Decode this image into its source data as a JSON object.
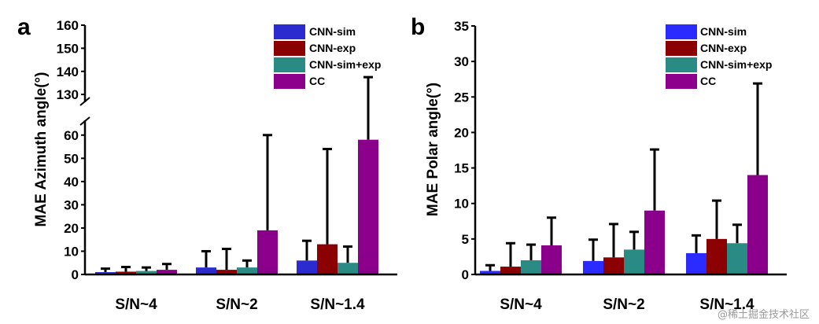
{
  "chart_data": [
    {
      "type": "bar",
      "panel_label": "a",
      "ylabel": "MAE Azimuth angle(°)",
      "categories": [
        "S/N~4",
        "S/N~2",
        "S/N~1.4"
      ],
      "series": [
        {
          "name": "CNN-sim",
          "color": "#2b2bd0",
          "values": [
            1.0,
            3.0,
            6.0
          ],
          "errors": [
            1.5,
            7.0,
            8.5
          ]
        },
        {
          "name": "CNN-exp",
          "color": "#8b0000",
          "values": [
            1.2,
            2.0,
            13.0
          ],
          "errors": [
            2.0,
            9.0,
            41.0
          ]
        },
        {
          "name": "CNN-sim+exp",
          "color": "#2a8a84",
          "values": [
            1.5,
            3.0,
            5.0
          ],
          "errors": [
            1.5,
            3.0,
            7.0
          ]
        },
        {
          "name": "CC",
          "color": "#8b008b",
          "values": [
            2.0,
            19.0,
            58.0
          ],
          "errors": [
            2.5,
            41.0,
            79.5
          ]
        }
      ],
      "axis_break": {
        "lower": [
          0,
          65
        ],
        "upper": [
          128,
          160
        ]
      },
      "ytick_labels": [
        "0",
        "10",
        "20",
        "30",
        "40",
        "50",
        "60",
        "130",
        "140",
        "150",
        "160"
      ]
    },
    {
      "type": "bar",
      "panel_label": "b",
      "ylabel": "MAE Polar angle(°)",
      "categories": [
        "S/N~4",
        "S/N~2",
        "S/N~1.4"
      ],
      "series": [
        {
          "name": "CNN-sim",
          "color": "#2b2bff",
          "values": [
            0.5,
            1.9,
            3.0
          ],
          "errors": [
            0.8,
            3.0,
            2.5
          ]
        },
        {
          "name": "CNN-exp",
          "color": "#8b0000",
          "values": [
            1.1,
            2.4,
            5.0
          ],
          "errors": [
            3.3,
            4.7,
            5.4
          ]
        },
        {
          "name": "CNN-sim+exp",
          "color": "#2a8a84",
          "values": [
            2.0,
            3.5,
            4.4
          ],
          "errors": [
            2.2,
            2.5,
            2.6
          ]
        },
        {
          "name": "CC",
          "color": "#8b008b",
          "values": [
            4.1,
            9.0,
            14.0
          ],
          "errors": [
            3.9,
            8.6,
            12.9
          ]
        }
      ],
      "ylim": [
        0,
        35
      ],
      "ytick_labels": [
        "0",
        "5",
        "10",
        "15",
        "20",
        "25",
        "30",
        "35"
      ]
    }
  ],
  "watermark": "@稀土掘金技术社区"
}
